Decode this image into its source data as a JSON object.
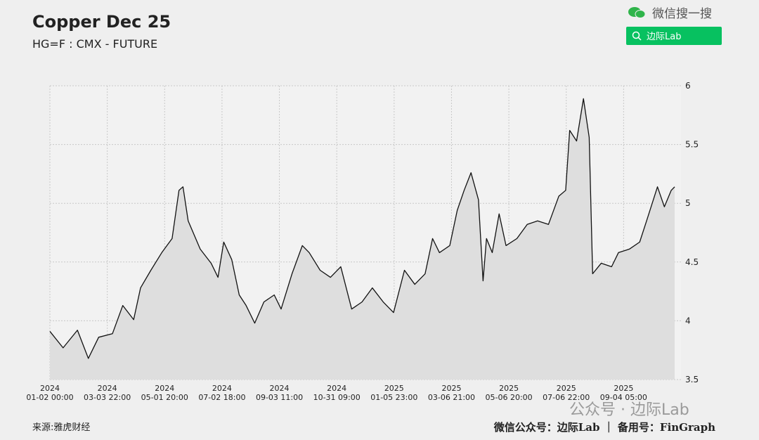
{
  "chart_data": {
    "type": "area",
    "title": "Copper Dec 25",
    "subtitle": "HG=F : CMX - FUTURE",
    "search_brand": "微信搜一搜",
    "search_button": "边际Lab",
    "watermark": "公众号 · 边际Lab",
    "source": "来源:雅虎财经",
    "footer": "微信公众号：边际Lab ｜ 备用号：FinGraph",
    "line_color": "#111111",
    "fill_color": "#dedede",
    "grid": true,
    "xlim": [
      0,
      11.0
    ],
    "ylim": [
      3.5,
      6
    ],
    "yticks": [
      3.5,
      4,
      4.5,
      5,
      5.5,
      6
    ],
    "xticks": [
      {
        "value": 0,
        "label": "2024\n01-02 00:00"
      },
      {
        "value": 1,
        "label": "2024\n03-03 22:00"
      },
      {
        "value": 2,
        "label": "2024\n05-01 20:00"
      },
      {
        "value": 3,
        "label": "2024\n07-02 18:00"
      },
      {
        "value": 4,
        "label": "2024\n09-03 11:00"
      },
      {
        "value": 5,
        "label": "2024\n10-31 09:00"
      },
      {
        "value": 6,
        "label": "2025\n01-05 23:00"
      },
      {
        "value": 7,
        "label": "2025\n03-06 21:00"
      },
      {
        "value": 8,
        "label": "2025\n05-06 20:00"
      },
      {
        "value": 9,
        "label": "2025\n07-06 22:00"
      },
      {
        "value": 10,
        "label": "2025\n09-04 05:00"
      }
    ],
    "x": [
      0,
      0.23,
      0.48,
      0.67,
      0.85,
      1.09,
      1.27,
      1.46,
      1.58,
      1.76,
      1.95,
      2.13,
      2.25,
      2.32,
      2.41,
      2.62,
      2.81,
      2.93,
      3.03,
      3.17,
      3.3,
      3.42,
      3.57,
      3.73,
      3.91,
      4.03,
      4.22,
      4.4,
      4.52,
      4.71,
      4.89,
      5.07,
      5.26,
      5.44,
      5.62,
      5.81,
      5.99,
      6.18,
      6.36,
      6.54,
      6.67,
      6.79,
      6.97,
      7.1,
      7.22,
      7.34,
      7.47,
      7.55,
      7.61,
      7.71,
      7.83,
      7.95,
      8.14,
      8.32,
      8.5,
      8.69,
      8.87,
      8.99,
      9.06,
      9.18,
      9.3,
      9.4,
      9.46,
      9.61,
      9.79,
      9.91,
      10.1,
      10.28,
      10.4,
      10.59,
      10.71,
      10.83,
      10.89
    ],
    "values": [
      3.91,
      3.77,
      3.92,
      3.68,
      3.86,
      3.89,
      4.13,
      4.01,
      4.28,
      4.43,
      4.58,
      4.7,
      5.11,
      5.14,
      4.85,
      4.61,
      4.49,
      4.37,
      4.67,
      4.52,
      4.22,
      4.13,
      3.98,
      4.16,
      4.22,
      4.1,
      4.4,
      4.64,
      4.58,
      4.43,
      4.37,
      4.46,
      4.1,
      4.16,
      4.28,
      4.16,
      4.07,
      4.43,
      4.31,
      4.4,
      4.7,
      4.58,
      4.64,
      4.94,
      5.11,
      5.26,
      5.03,
      4.34,
      4.7,
      4.58,
      4.91,
      4.64,
      4.7,
      4.82,
      4.85,
      4.82,
      5.06,
      5.11,
      5.62,
      5.53,
      5.89,
      5.56,
      4.4,
      4.49,
      4.46,
      4.58,
      4.61,
      4.67,
      4.85,
      5.14,
      4.97,
      5.11,
      5.14
    ]
  }
}
